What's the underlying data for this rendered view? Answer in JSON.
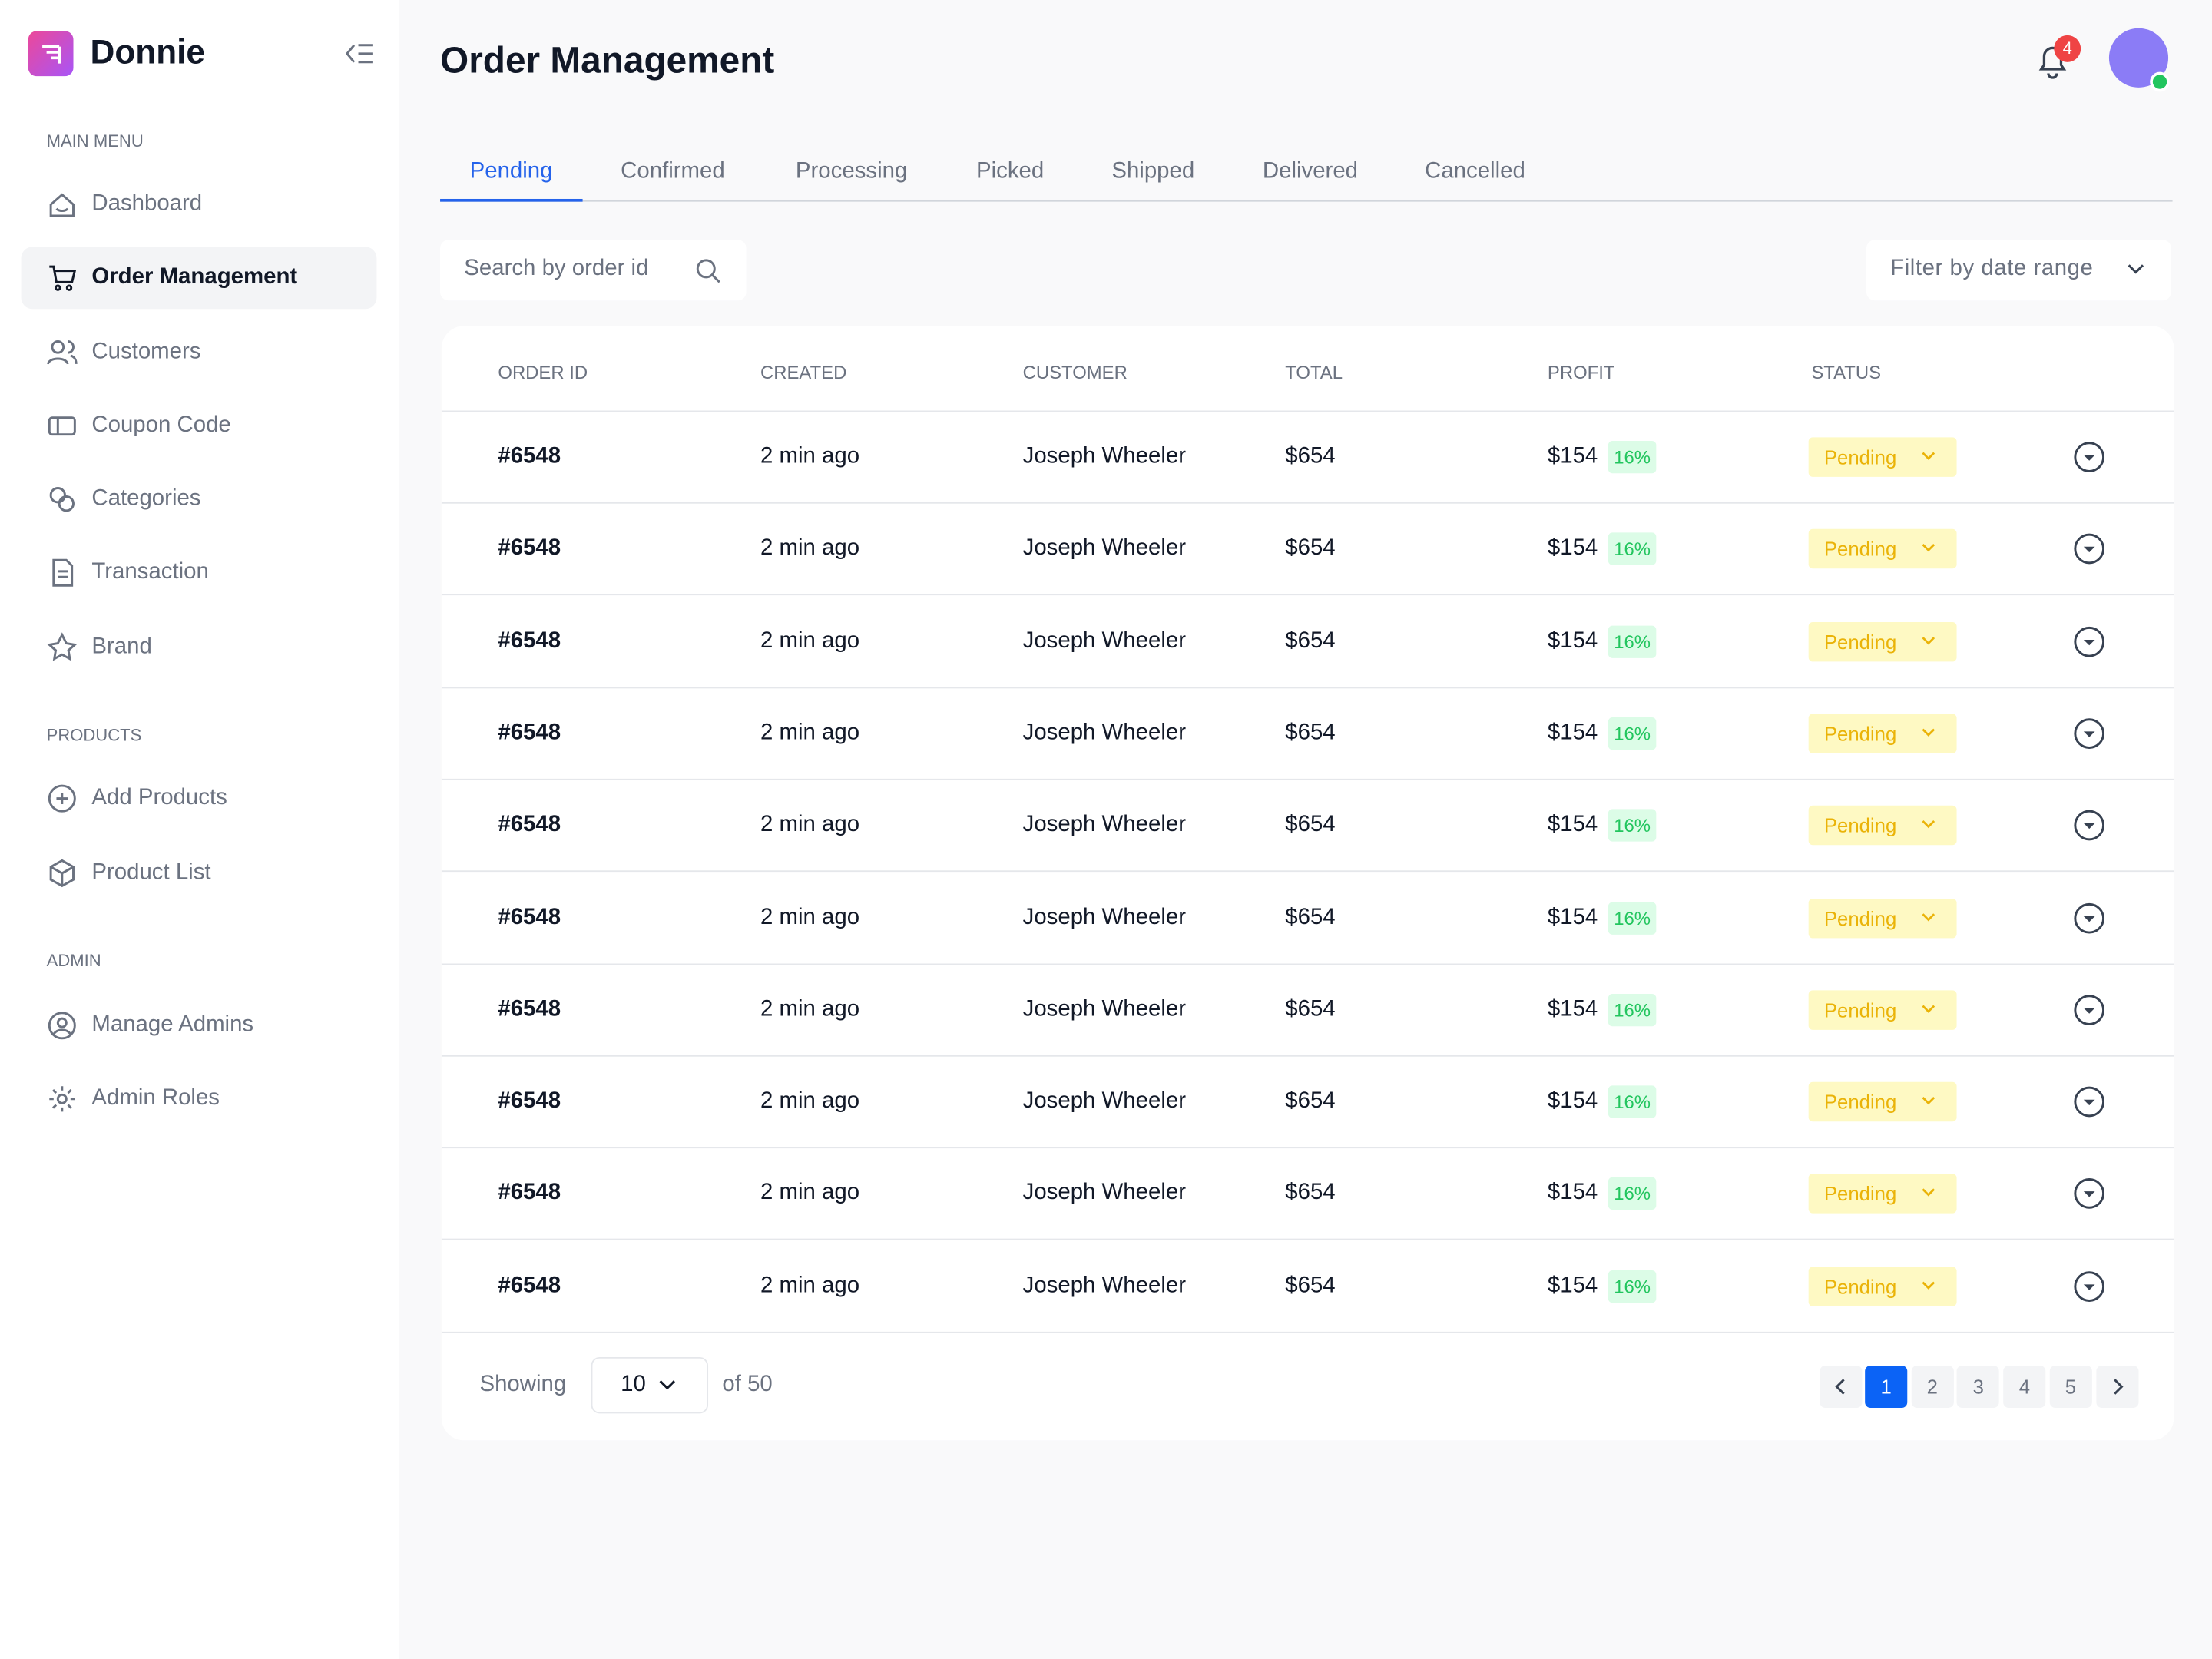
{
  "sidebar": {
    "brand": "Donnie",
    "sections": [
      {
        "title": "MAIN MENU",
        "items": [
          "Dashboard",
          "Order Management",
          "Customers",
          "Coupon Code",
          "Categories",
          "Transaction",
          "Brand"
        ]
      },
      {
        "title": "PRODUCTS",
        "items": [
          "Add Products",
          "Product List"
        ]
      },
      {
        "title": "ADMIN",
        "items": [
          "Manage Admins",
          "Admin Roles"
        ]
      }
    ]
  },
  "header": {
    "title": "Order Management",
    "notifications": 4
  },
  "tabs": [
    "Pending",
    "Confirmed",
    "Processing",
    "Picked",
    "Shipped",
    "Delivered",
    "Cancelled"
  ],
  "toolbar": {
    "search_placeholder": "Search by order id",
    "filter": "Filter by date range"
  },
  "table": {
    "columns": [
      "ORDER ID",
      "CREATED",
      "CUSTOMER",
      "TOTAL",
      "PROFIT",
      "STATUS"
    ],
    "rows": [
      [
        "#6548",
        "2 min ago",
        "Joseph Wheeler",
        "$654",
        "$154",
        "16%",
        "Pending"
      ],
      [
        "#6548",
        "2 min ago",
        "Joseph Wheeler",
        "$654",
        "$154",
        "16%",
        "Pending"
      ],
      [
        "#6548",
        "2 min ago",
        "Joseph Wheeler",
        "$654",
        "$154",
        "16%",
        "Pending"
      ],
      [
        "#6548",
        "2 min ago",
        "Joseph Wheeler",
        "$654",
        "$154",
        "16%",
        "Pending"
      ],
      [
        "#6548",
        "2 min ago",
        "Joseph Wheeler",
        "$654",
        "$154",
        "16%",
        "Pending"
      ],
      [
        "#6548",
        "2 min ago",
        "Joseph Wheeler",
        "$654",
        "$154",
        "16%",
        "Pending"
      ],
      [
        "#6548",
        "2 min ago",
        "Joseph Wheeler",
        "$654",
        "$154",
        "16%",
        "Pending"
      ],
      [
        "#6548",
        "2 min ago",
        "Joseph Wheeler",
        "$654",
        "$154",
        "16%",
        "Pending"
      ],
      [
        "#6548",
        "2 min ago",
        "Joseph Wheeler",
        "$654",
        "$154",
        "16%",
        "Pending"
      ],
      [
        "#6548",
        "2 min ago",
        "Joseph Wheeler",
        "$654",
        "$154",
        "16%",
        "Pending"
      ]
    ]
  },
  "footer": {
    "showing": "Showing",
    "page_size": 10,
    "of_total": "of 50",
    "pages": [
      1,
      2,
      3,
      4,
      5
    ]
  }
}
